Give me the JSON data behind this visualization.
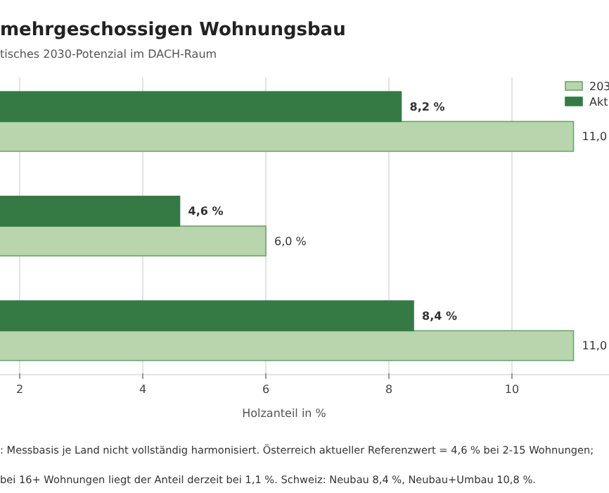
{
  "chart_data": {
    "type": "bar",
    "orientation": "horizontal",
    "title": "mehrgeschossigen Wohnungsbau",
    "subtitle": "tisches 2030-Potenzial im DACH-Raum",
    "xlabel": "Holzanteil in %",
    "categories": [
      null,
      null,
      null
    ],
    "series": [
      {
        "name": "203",
        "color": "#b9d5ad",
        "values": [
          11.0,
          6.0,
          11.0
        ],
        "value_labels": [
          "11,0",
          "6,0 %",
          "11,0"
        ]
      },
      {
        "name": "Akt",
        "color": "#357a45",
        "values": [
          8.2,
          4.6,
          8.4
        ],
        "value_labels": [
          "8,2 %",
          "4,6 %",
          "8,4 %"
        ]
      }
    ],
    "xlim": [
      0,
      12
    ],
    "xticks": [
      2,
      4,
      6,
      8,
      10
    ],
    "grid": "x",
    "legend": "top right",
    "annotations": [
      ": Messbasis je Land nicht vollständig harmonisiert. Österreich aktueller Referenzwert = 4,6 % bei 2-15 Wohnungen;",
      "bei 16+ Wohnungen liegt der Anteil derzeit bei 1,1 %. Schweiz: Neubau 8,4 %, Neubau+Umbau 10,8 %."
    ]
  }
}
